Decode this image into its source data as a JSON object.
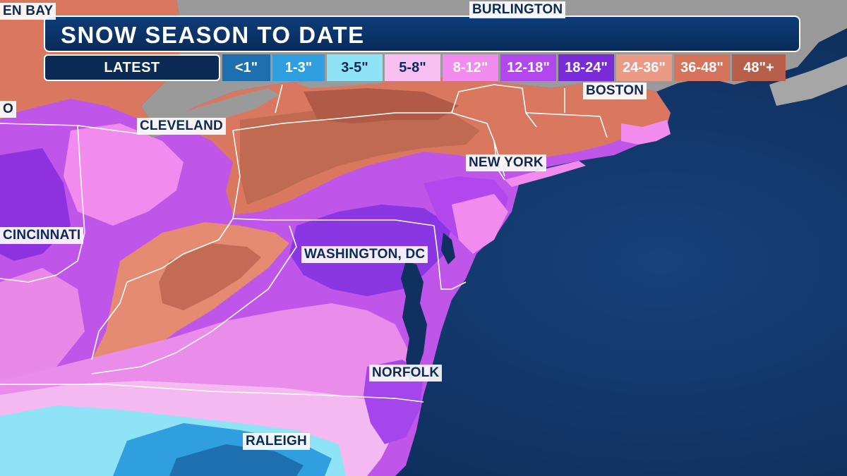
{
  "title": "SNOW SEASON TO DATE",
  "legend": {
    "latest_label": "LATEST",
    "swatches": [
      {
        "label": "<1\"",
        "color": "#1d6fb0",
        "text_color": "#ffffff"
      },
      {
        "label": "1-3\"",
        "color": "#2f9fe0",
        "text_color": "#ffffff"
      },
      {
        "label": "3-5\"",
        "color": "#8fe3f6",
        "text_color": "#0b2a55"
      },
      {
        "label": "5-8\"",
        "color": "#f7bff2",
        "text_color": "#0b2a55"
      },
      {
        "label": "8-12\"",
        "color": "#f18cee",
        "text_color": "#ffffff"
      },
      {
        "label": "12-18\"",
        "color": "#b247ee",
        "text_color": "#ffffff"
      },
      {
        "label": "18-24\"",
        "color": "#7a2bd8",
        "text_color": "#ffffff"
      },
      {
        "label": "24-36\"",
        "color": "#eb9a86",
        "text_color": "#ffffff"
      },
      {
        "label": "36-48\"",
        "color": "#d6735c",
        "text_color": "#ffffff"
      },
      {
        "label": "48\"+",
        "color": "#b85f4c",
        "text_color": "#ffffff"
      }
    ]
  },
  "cities": [
    {
      "id": "green-bay",
      "label": "EN BAY"
    },
    {
      "id": "burlington",
      "label": "BURLINGTON"
    },
    {
      "id": "toronto",
      "label": "O"
    },
    {
      "id": "boston",
      "label": "BOSTON"
    },
    {
      "id": "cleveland",
      "label": "CLEVELAND"
    },
    {
      "id": "new-york",
      "label": "NEW YORK"
    },
    {
      "id": "cincinnati",
      "label": "CINCINNATI"
    },
    {
      "id": "washington-dc",
      "label": "WASHINGTON, DC"
    },
    {
      "id": "norfolk",
      "label": "NORFOLK"
    },
    {
      "id": "raleigh",
      "label": "RALEIGH"
    }
  ],
  "colors": {
    "ocean": "#0f2f5d",
    "land_no_data": "#9a9a9a",
    "title_bar": "#0b3a74"
  }
}
